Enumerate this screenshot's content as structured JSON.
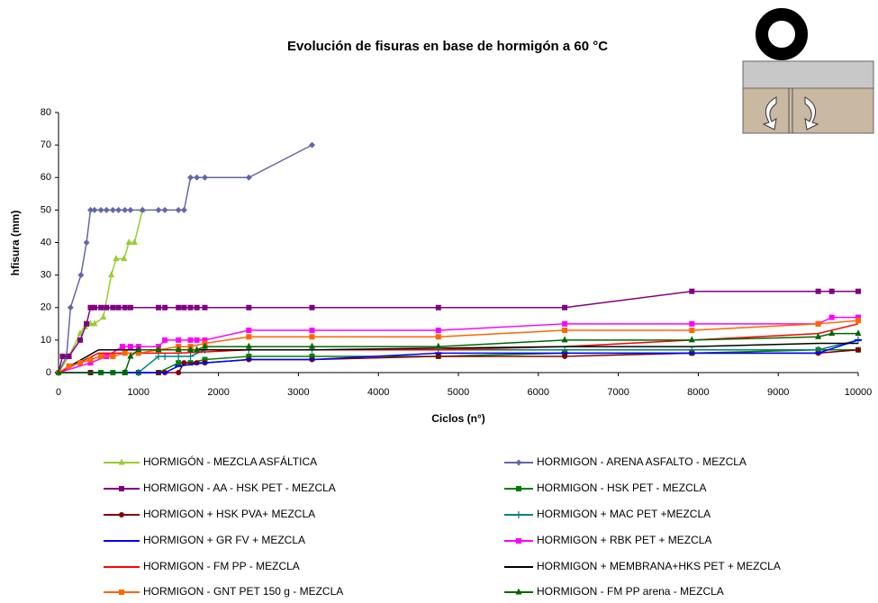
{
  "chart_data": {
    "type": "line",
    "title": "Evolución de fisuras en base de hormigón a 60 °C",
    "x_label": "Ciclos (n°)",
    "y_label": "hfisura (mm)",
    "xlim": [
      0,
      10000
    ],
    "xticks": [
      0,
      1000,
      2000,
      3000,
      4000,
      5000,
      6000,
      7000,
      8000,
      9000,
      10000
    ],
    "ylim": [
      0,
      80
    ],
    "yticks": [
      0,
      10,
      20,
      30,
      40,
      50,
      60,
      70,
      80
    ],
    "series": [
      {
        "name": "HORMIGÓN - MEZCLA ASFÁLTICA",
        "color": "#99cc33",
        "marker": "triangle",
        "x": [
          0,
          130,
          270,
          330,
          400,
          450,
          560,
          660,
          720,
          820,
          880,
          950,
          1050
        ],
        "values": [
          0,
          5,
          12,
          14,
          15,
          15,
          17,
          30,
          35,
          35,
          40,
          40,
          50
        ]
      },
      {
        "name": "HORMIGON - ARENA ASFALTO - MEZCLA",
        "color": "#6666a8",
        "marker": "diamond",
        "x": [
          0,
          100,
          150,
          280,
          350,
          400,
          450,
          530,
          600,
          680,
          750,
          830,
          900,
          1050,
          1250,
          1330,
          1500,
          1570,
          1650,
          1730,
          1830,
          2380,
          3170
        ],
        "values": [
          0,
          5,
          20,
          30,
          40,
          50,
          50,
          50,
          50,
          50,
          50,
          50,
          50,
          50,
          50,
          50,
          50,
          50,
          60,
          60,
          60,
          60,
          70
        ]
      },
      {
        "name": "HORMIGON - AA - HSK PET - MEZCLA",
        "color": "#800080",
        "marker": "square",
        "x": [
          0,
          50,
          130,
          270,
          350,
          400,
          450,
          530,
          600,
          680,
          750,
          830,
          900,
          1250,
          1330,
          1500,
          1570,
          1650,
          1730,
          1830,
          2380,
          3170,
          4750,
          6330,
          7920,
          9500,
          9670,
          10000
        ],
        "values": [
          0,
          5,
          5,
          10,
          15,
          20,
          20,
          20,
          20,
          20,
          20,
          20,
          20,
          20,
          20,
          20,
          20,
          20,
          20,
          20,
          20,
          20,
          20,
          20,
          25,
          25,
          25,
          25
        ]
      },
      {
        "name": "HORMIGON - HSK PET - MEZCLA",
        "color": "#008000",
        "marker": "square",
        "x": [
          0,
          400,
          530,
          680,
          830,
          1000,
          1250,
          1500,
          1650,
          1830,
          2380,
          3170,
          4750,
          6330,
          7920,
          9500,
          10000
        ],
        "values": [
          0,
          0,
          0,
          0,
          0,
          0,
          0,
          3,
          3,
          4,
          5,
          5,
          5,
          6,
          6,
          7,
          7
        ]
      },
      {
        "name": "HORMIGON + HSK PVA+ MEZCLA",
        "color": "#800000",
        "marker": "circle",
        "x": [
          0,
          400,
          1250,
          1330,
          1500,
          1570,
          1730,
          1830,
          2380,
          3170,
          4750,
          6330,
          7920,
          9500,
          10000
        ],
        "values": [
          0,
          0,
          0,
          0,
          0,
          3,
          3,
          3,
          4,
          4,
          5,
          5,
          6,
          6,
          7
        ]
      },
      {
        "name": "HORMIGON + MAC PET +MEZCLA",
        "color": "#008080",
        "marker": "plus",
        "x": [
          0,
          1000,
          1250,
          1330,
          1500,
          1650,
          1830,
          2380,
          3170,
          4750,
          6330,
          7920,
          9500,
          10000
        ],
        "values": [
          0,
          0,
          5,
          5,
          5,
          5,
          7,
          7,
          7,
          7,
          7,
          7,
          7,
          10
        ]
      },
      {
        "name": "HORMIGON + GR FV + MEZCLA",
        "color": "#0000ff",
        "marker": "dash",
        "x": [
          0,
          1100,
          1330,
          1500,
          1830,
          2380,
          3170,
          4750,
          6330,
          7920,
          9500,
          10000
        ],
        "values": [
          0,
          0,
          0,
          2,
          3,
          4,
          4,
          6,
          6,
          6,
          6,
          10
        ]
      },
      {
        "name": "HORMIGON + RBK PET + MEZCLA",
        "color": "#ff00ff",
        "marker": "square",
        "x": [
          0,
          400,
          600,
          800,
          900,
          1000,
          1250,
          1330,
          1500,
          1650,
          1730,
          1830,
          2380,
          3170,
          4750,
          6330,
          7920,
          9500,
          9670,
          10000
        ],
        "values": [
          0,
          3,
          5,
          8,
          8,
          8,
          8,
          10,
          10,
          10,
          10,
          10,
          13,
          13,
          13,
          15,
          15,
          15,
          17,
          17
        ]
      },
      {
        "name": "HORMIGON - FM PP - MEZCLA",
        "color": "#ff0000",
        "marker": "none",
        "x": [
          0,
          500,
          1000,
          1500,
          2380,
          3170,
          4750,
          6330,
          7920,
          9500,
          10000
        ],
        "values": [
          0,
          6,
          6,
          6,
          7,
          7,
          7,
          8,
          10,
          12,
          15
        ]
      },
      {
        "name": "HORMIGON + MEMBRANA+HKS PET + MEZCLA",
        "color": "#000000",
        "marker": "none",
        "x": [
          0,
          500,
          1000,
          2380,
          3170,
          4750,
          6330,
          7920,
          9500,
          10000
        ],
        "values": [
          0,
          7,
          7,
          7,
          7,
          7.5,
          8,
          8,
          9,
          9
        ]
      },
      {
        "name": "HORMIGON - GNT PET 150 g - MEZCLA",
        "color": "#ff6600",
        "marker": "square",
        "x": [
          0,
          130,
          270,
          400,
          530,
          680,
          830,
          1000,
          1250,
          1500,
          1650,
          1830,
          2380,
          3170,
          4750,
          6330,
          7920,
          9500,
          10000
        ],
        "values": [
          0,
          2,
          3,
          4,
          5,
          5,
          6,
          6,
          7,
          8,
          8,
          9,
          11,
          11,
          11,
          13,
          13,
          15,
          16
        ]
      },
      {
        "name": "HORMIGON - FM PP arena - MEZCLA",
        "color": "#006600",
        "marker": "triangle",
        "x": [
          0,
          830,
          900,
          1000,
          1250,
          1500,
          1650,
          1730,
          1830,
          2380,
          3170,
          4750,
          6330,
          7920,
          9500,
          9670,
          10000
        ],
        "values": [
          0,
          0,
          5,
          7,
          7,
          7,
          7,
          7,
          8,
          8,
          8,
          8,
          10,
          10,
          11,
          12,
          12
        ]
      }
    ]
  }
}
